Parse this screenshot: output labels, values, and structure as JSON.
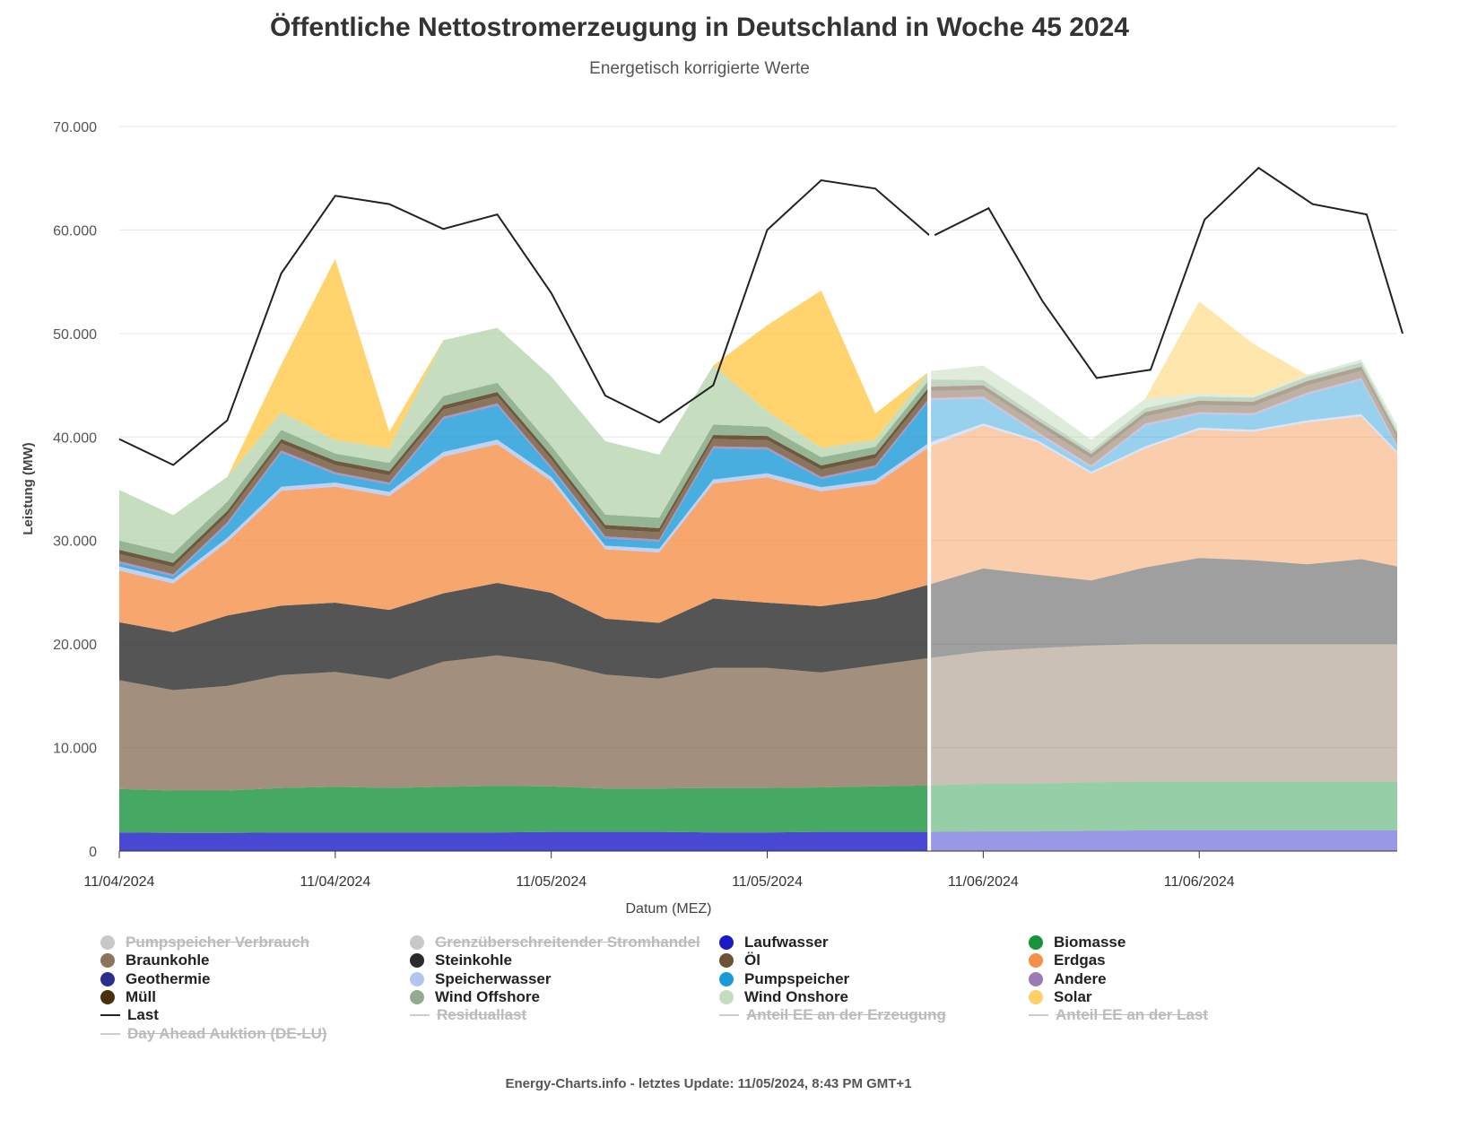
{
  "title": "Öffentliche Nettostromerzeugung in Deutschland in Woche 45 2024",
  "subtitle": "Energetisch korrigierte Werte",
  "footer": "Energy-Charts.info - letztes Update: 11/05/2024, 8:43 PM GMT+1",
  "chart_data": {
    "type": "area",
    "stacked": true,
    "ylabel": "Leistung (MW)",
    "xlabel": "Datum (MEZ)",
    "ylim": [
      0,
      70000
    ],
    "yticks": [
      0,
      10000,
      20000,
      30000,
      40000,
      50000,
      60000,
      70000
    ],
    "ytick_labels": [
      "0",
      "10.000",
      "20.000",
      "30.000",
      "40.000",
      "50.000",
      "60.000",
      "70.000"
    ],
    "x_start": "2024-11-04 00:00",
    "x_step_hours": 3,
    "x_end": "2024-11-06 23:00",
    "forecast_from": "2024-11-05 21:00",
    "xtick_labels": [
      "11/04/2024",
      "11/04/2024",
      "11/05/2024",
      "11/05/2024",
      "11/06/2024",
      "11/06/2024"
    ],
    "xtick_times": [
      "2024-11-04 00:00",
      "2024-11-04 12:00",
      "2024-11-05 00:00",
      "2024-11-05 12:00",
      "2024-11-06 00:00",
      "2024-11-06 12:00"
    ],
    "series": [
      {
        "name": "Laufwasser",
        "color": "#1a1ac8",
        "values": [
          1800,
          1750,
          1750,
          1800,
          1800,
          1800,
          1800,
          1800,
          1850,
          1850,
          1850,
          1800,
          1800,
          1850,
          1850,
          1850,
          1900,
          1900,
          1950,
          2000,
          2000,
          2000,
          2000,
          2000,
          2000
        ]
      },
      {
        "name": "Biomasse",
        "color": "#17933c",
        "values": [
          4200,
          4100,
          4100,
          4300,
          4400,
          4300,
          4400,
          4500,
          4400,
          4200,
          4200,
          4300,
          4300,
          4300,
          4400,
          4500,
          4600,
          4600,
          4700,
          4700,
          4700,
          4700,
          4700,
          4700,
          4700
        ]
      },
      {
        "name": "Braunkohle",
        "color": "#8c735c",
        "values": [
          10500,
          9700,
          10100,
          10900,
          11100,
          10500,
          12100,
          12600,
          12000,
          11000,
          10600,
          11600,
          11600,
          11100,
          11700,
          12300,
          12800,
          13100,
          13200,
          13300,
          13300,
          13300,
          13300,
          13300,
          13300
        ]
      },
      {
        "name": "Steinkohle",
        "color": "#2b2b2b",
        "values": [
          5600,
          5600,
          6800,
          6700,
          6700,
          6700,
          6600,
          7000,
          6700,
          5400,
          5400,
          6700,
          6300,
          6400,
          6400,
          7100,
          8000,
          7100,
          6300,
          7400,
          8300,
          8100,
          7700,
          8200,
          7500
        ]
      },
      {
        "name": "Erdgas",
        "color": "#f5904a",
        "values": [
          5000,
          4700,
          7100,
          11100,
          11200,
          11000,
          13200,
          13400,
          10800,
          6700,
          6800,
          11100,
          12100,
          11100,
          11100,
          13300,
          13800,
          12800,
          10300,
          11500,
          12400,
          12400,
          13700,
          13800,
          10900
        ]
      },
      {
        "name": "Speicherwasser",
        "color": "#b2c5f0",
        "values": [
          400,
          400,
          400,
          400,
          400,
          400,
          450,
          450,
          400,
          350,
          350,
          400,
          400,
          400,
          400,
          400,
          200,
          200,
          200,
          200,
          200,
          200,
          200,
          200,
          200
        ]
      },
      {
        "name": "Pumpspeicher",
        "color": "#1a9ad8",
        "values": [
          300,
          300,
          1300,
          3300,
          800,
          700,
          3200,
          3300,
          800,
          700,
          700,
          3000,
          2300,
          800,
          1200,
          4100,
          2400,
          600,
          400,
          2000,
          1300,
          1400,
          2500,
          3300,
          400
        ]
      },
      {
        "name": "Andere",
        "color": "#9a7bb5",
        "values": [
          200,
          200,
          200,
          200,
          200,
          200,
          200,
          200,
          200,
          200,
          200,
          200,
          200,
          200,
          200,
          200,
          200,
          200,
          200,
          200,
          200,
          200,
          200,
          200,
          200
        ]
      },
      {
        "name": "Öl",
        "color": "#6e5236",
        "values": [
          700,
          700,
          700,
          700,
          700,
          700,
          700,
          700,
          700,
          700,
          700,
          700,
          700,
          700,
          700,
          700,
          700,
          700,
          700,
          700,
          700,
          700,
          700,
          700,
          700
        ]
      },
      {
        "name": "Müll",
        "color": "#4a2f0f",
        "values": [
          400,
          400,
          400,
          400,
          400,
          400,
          400,
          400,
          400,
          400,
          400,
          400,
          400,
          400,
          400,
          400,
          400,
          400,
          400,
          400,
          400,
          400,
          400,
          400,
          400
        ]
      },
      {
        "name": "Wind Offshore",
        "color": "#7aa27a",
        "values": [
          900,
          900,
          900,
          900,
          700,
          800,
          900,
          900,
          900,
          1000,
          1000,
          1000,
          900,
          800,
          700,
          700,
          500,
          400,
          300,
          400,
          400,
          400,
          400,
          400,
          300
        ]
      },
      {
        "name": "Wind Onshore",
        "color": "#b8d4b0",
        "values": [
          4900,
          3700,
          2400,
          1700,
          1300,
          1400,
          5400,
          5300,
          6700,
          7100,
          6100,
          5700,
          1500,
          900,
          700,
          800,
          1400,
          1500,
          1100,
          900,
          300,
          200,
          200,
          300,
          500
        ]
      },
      {
        "name": "Solar",
        "color": "#ffc84a",
        "values": [
          0,
          0,
          0,
          4600,
          17500,
          1600,
          0,
          0,
          0,
          0,
          0,
          0,
          8300,
          15200,
          2500,
          0,
          0,
          0,
          0,
          0,
          8900,
          5000,
          0,
          0,
          0
        ]
      }
    ],
    "last": {
      "name": "Last",
      "color": "#222222",
      "values": [
        39800,
        37300,
        41600,
        55800,
        63300,
        62500,
        60100,
        61500,
        53900,
        44000,
        41400,
        45000,
        60000,
        64800,
        64000,
        59500,
        62100,
        53100,
        45700,
        46500,
        61000,
        66000,
        62500,
        61500,
        50000
      ]
    },
    "legend": [
      {
        "name": "Pumpspeicher Verbrauch",
        "color": "#c8c8c8",
        "kind": "dot",
        "hidden": true
      },
      {
        "name": "Grenzüberschreitender Stromhandel",
        "color": "#c8c8c8",
        "kind": "dot",
        "hidden": true
      },
      {
        "name": "Laufwasser",
        "color": "#1a1ac8",
        "kind": "dot",
        "hidden": false
      },
      {
        "name": "Biomasse",
        "color": "#17933c",
        "kind": "dot",
        "hidden": false
      },
      {
        "name": "Braunkohle",
        "color": "#8c735c",
        "kind": "dot",
        "hidden": false
      },
      {
        "name": "Steinkohle",
        "color": "#2b2b2b",
        "kind": "dot",
        "hidden": false
      },
      {
        "name": "Öl",
        "color": "#6e5236",
        "kind": "dot",
        "hidden": false
      },
      {
        "name": "Erdgas",
        "color": "#f5904a",
        "kind": "dot",
        "hidden": false
      },
      {
        "name": "Geothermie",
        "color": "#2b2f8c",
        "kind": "dot",
        "hidden": false
      },
      {
        "name": "Speicherwasser",
        "color": "#b2c5f0",
        "kind": "dot",
        "hidden": false
      },
      {
        "name": "Pumpspeicher",
        "color": "#1a9ad8",
        "kind": "dot",
        "hidden": false
      },
      {
        "name": "Andere",
        "color": "#9a7bb5",
        "kind": "dot",
        "hidden": false
      },
      {
        "name": "Müll",
        "color": "#4a2f0f",
        "kind": "dot",
        "hidden": false
      },
      {
        "name": "Wind Offshore",
        "color": "#93ac8f",
        "kind": "dot",
        "hidden": false
      },
      {
        "name": "Wind Onshore",
        "color": "#c4dcc0",
        "kind": "dot",
        "hidden": false
      },
      {
        "name": "Solar",
        "color": "#ffcf6a",
        "kind": "dot",
        "hidden": false
      },
      {
        "name": "Last",
        "color": "#222222",
        "kind": "line",
        "hidden": false
      },
      {
        "name": "Residuallast",
        "color": "#cccccc",
        "kind": "line",
        "hidden": true
      },
      {
        "name": "Anteil EE an der Erzeugung",
        "color": "#cccccc",
        "kind": "line",
        "hidden": true
      },
      {
        "name": "Anteil EE an der Last",
        "color": "#cccccc",
        "kind": "line",
        "hidden": true
      },
      {
        "name": "Day Ahead Auktion (DE-LU)",
        "color": "#cccccc",
        "kind": "line",
        "hidden": true
      }
    ]
  }
}
